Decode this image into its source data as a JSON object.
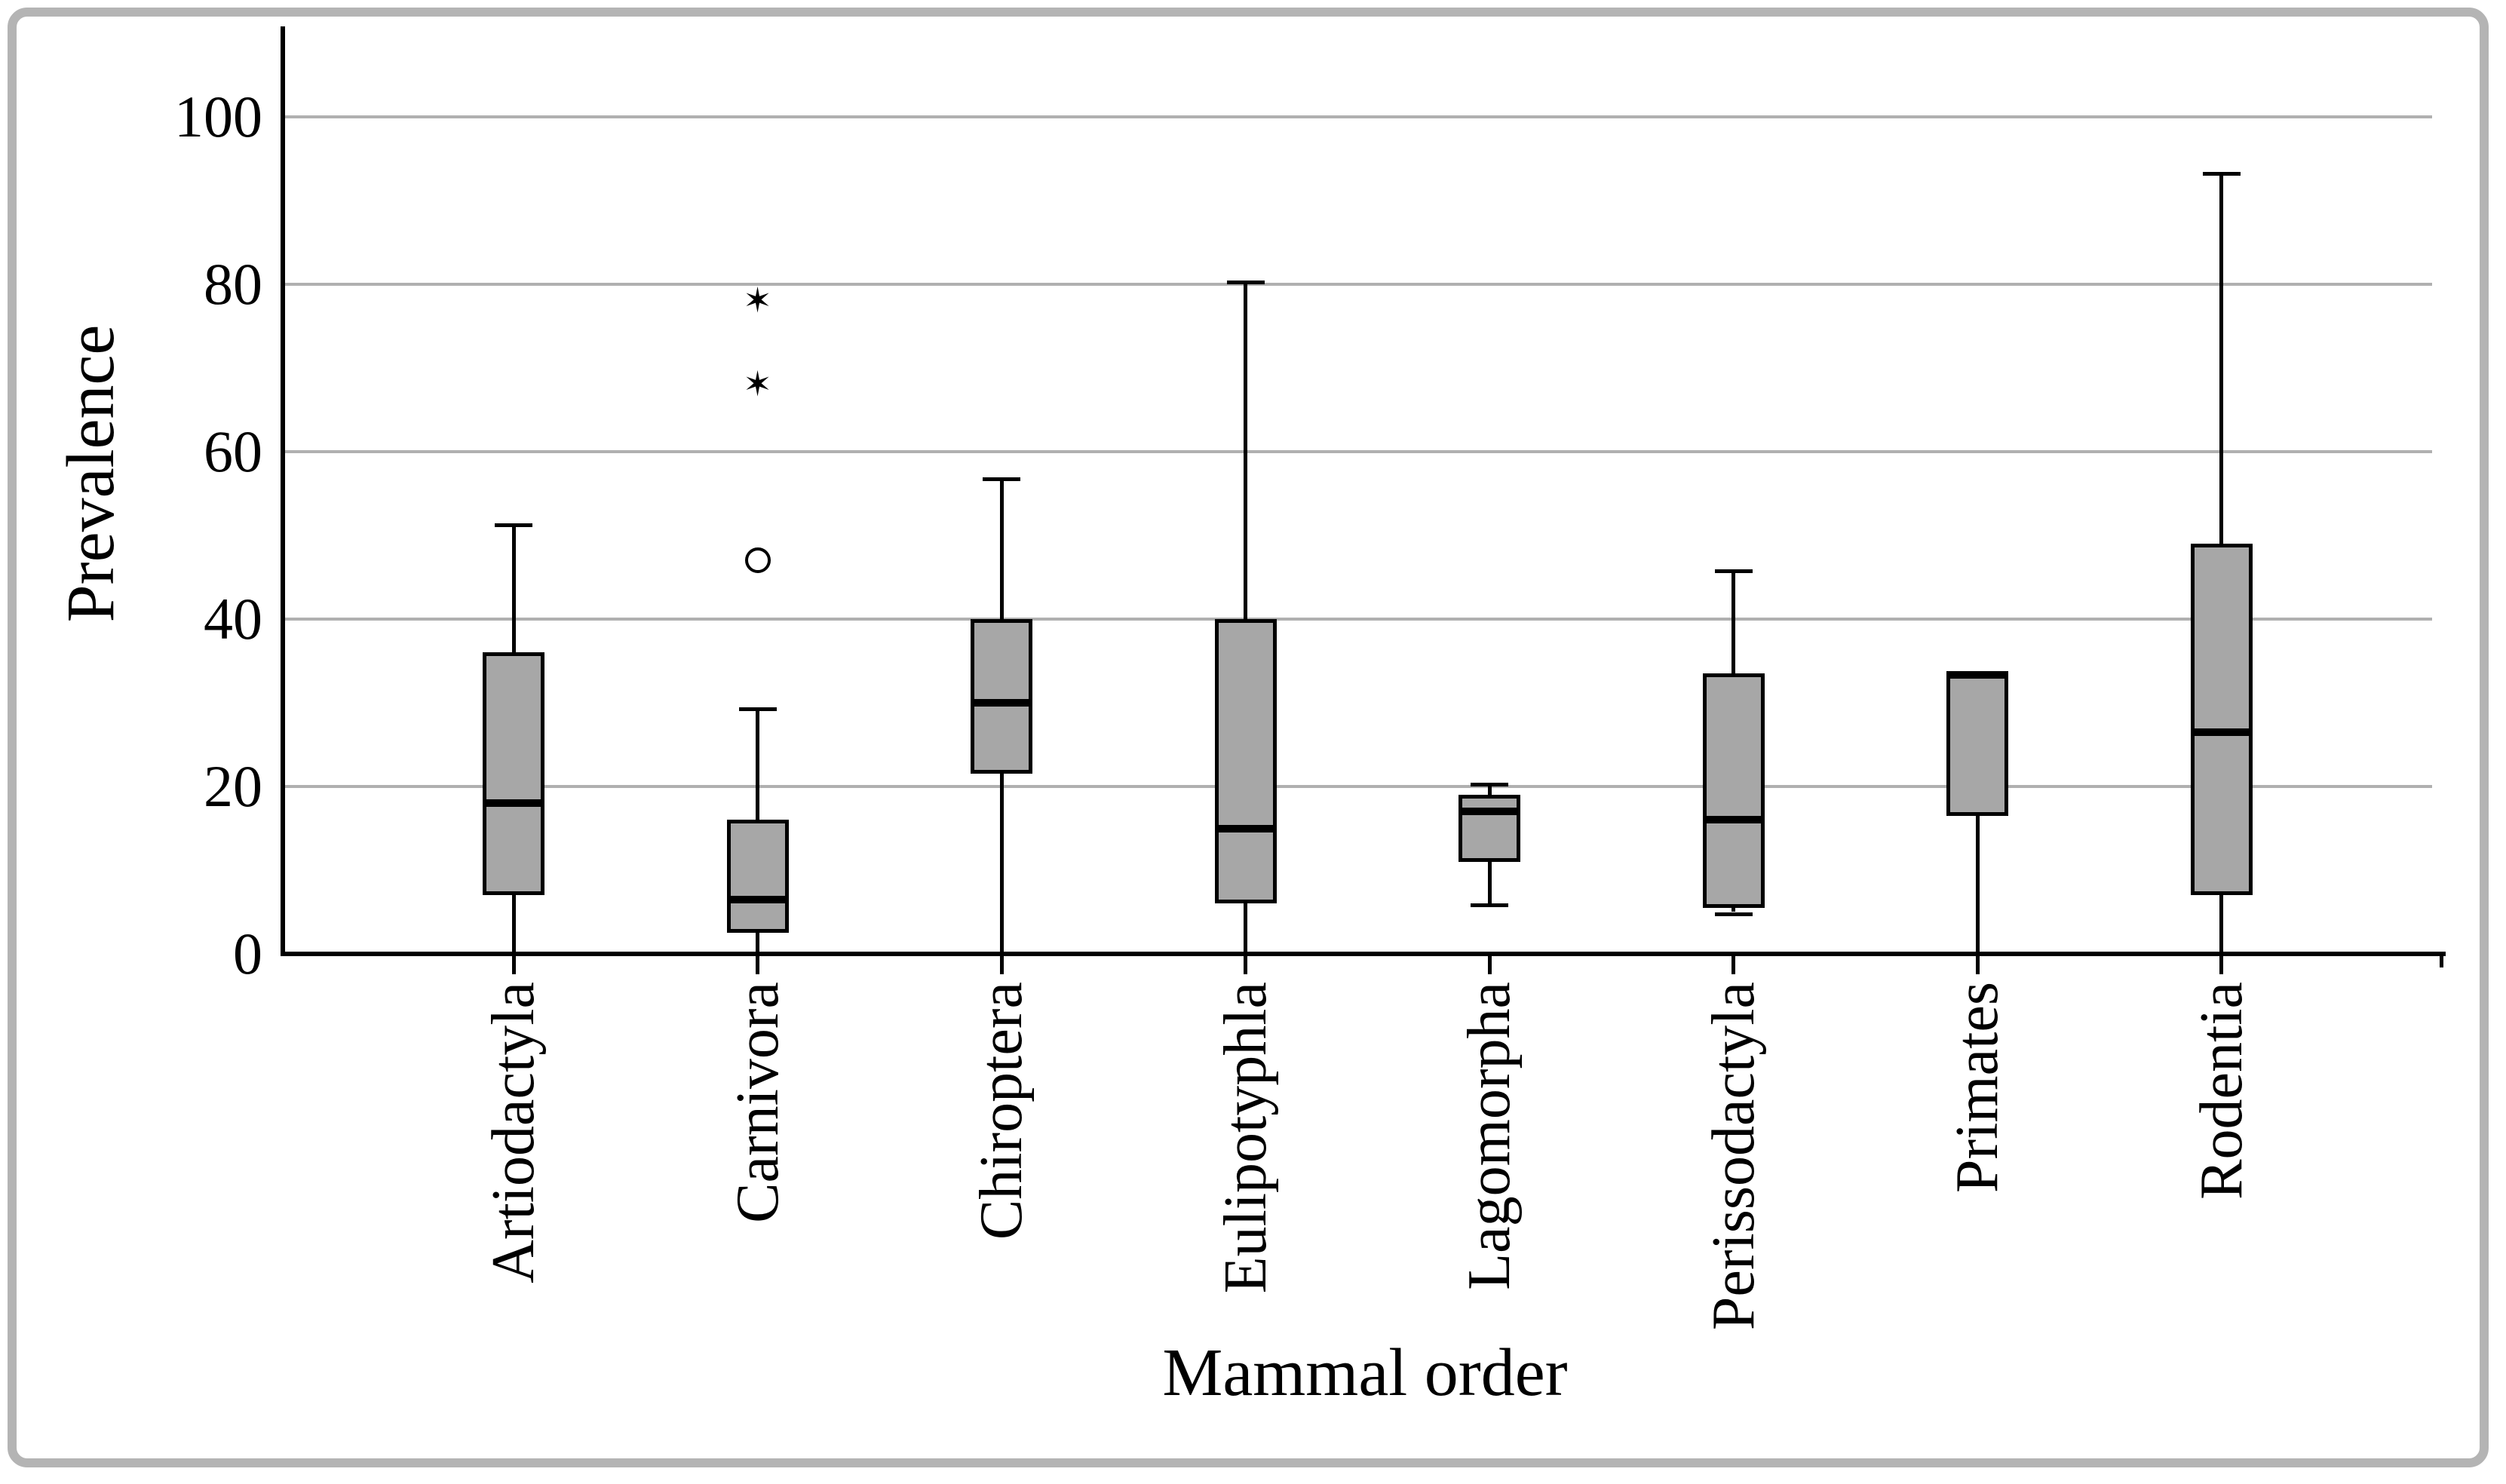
{
  "chart_data": {
    "type": "boxplot",
    "xlabel": "Mammal order",
    "ylabel": "Prevalence",
    "ylim": [
      0,
      112
    ],
    "yticks": [
      0,
      20,
      40,
      60,
      80,
      100
    ],
    "grid": "horizontal-gray-lines",
    "legend": "none",
    "categories": [
      "Artiodactyla",
      "Carnivora",
      "Chiroptera",
      "Eulipotyphla",
      "Lagomorpha",
      "Perissodactyla",
      "Primates",
      "Rodentia"
    ],
    "boxes": [
      {
        "category": "Artiodactyla",
        "whisker_low": 0,
        "q1": 7,
        "median": 18,
        "q3": 36,
        "whisker_high": 51,
        "outliers": []
      },
      {
        "category": "Carnivora",
        "whisker_low": 0,
        "q1": 2.5,
        "median": 6.5,
        "q3": 16,
        "whisker_high": 29,
        "outliers": [
          {
            "marker": "star",
            "value": 78
          },
          {
            "marker": "star",
            "value": 68
          },
          {
            "marker": "circle",
            "value": 47
          }
        ]
      },
      {
        "category": "Chiroptera",
        "whisker_low": 0,
        "q1": 21.5,
        "median": 30,
        "q3": 40,
        "whisker_high": 56.5,
        "outliers": []
      },
      {
        "category": "Eulipotyphla",
        "whisker_low": 0,
        "q1": 6,
        "median": 15,
        "q3": 40,
        "whisker_high": 80,
        "outliers": []
      },
      {
        "category": "Lagomorpha",
        "whisker_low": 6,
        "q1": 11,
        "median": 17,
        "q3": 19,
        "whisker_high": 20,
        "outliers": []
      },
      {
        "category": "Perissodactyla",
        "whisker_low": 5,
        "q1": 5.5,
        "median": 16,
        "q3": 33.5,
        "whisker_high": 45.5,
        "outliers": []
      },
      {
        "category": "Primates",
        "whisker_low": 0,
        "q1": 16.5,
        "median": 33.3,
        "q3": 33.3,
        "whisker_high": null,
        "outliers": []
      },
      {
        "category": "Rodentia",
        "whisker_low": 0,
        "q1": 7,
        "median": 26.5,
        "q3": 49,
        "whisker_high": 93,
        "outliers": []
      }
    ],
    "colors": {
      "box_fill": "#a7a7a7",
      "line": "#000000",
      "gridline": "#b0b0b0",
      "frame_border": "#b4b4b4"
    }
  }
}
